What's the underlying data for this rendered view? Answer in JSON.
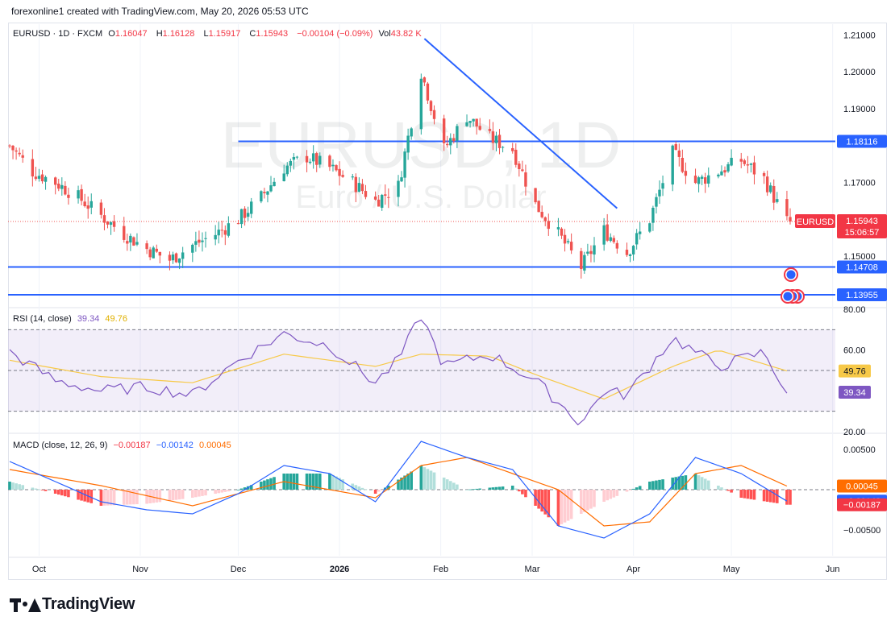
{
  "attribution": "forexonline1 created with TradingView.com, May 20, 2026 05:53 UTC",
  "brand": "TradingView",
  "watermark": {
    "symbol": "EURUSD, 1D",
    "description": "Euro / U.S. Dollar"
  },
  "legend": {
    "symbol": "EURUSD · 1D · FXCM",
    "open_label": "O",
    "open": "1.16047",
    "high_label": "H",
    "high": "1.16128",
    "low_label": "L",
    "low": "1.15917",
    "close_label": "C",
    "close": "1.15943",
    "change": "−0.00104 (−0.09%)",
    "vol_label": "Vol",
    "vol": "43.82 K"
  },
  "rsi_legend": {
    "label": "RSI (14, close)",
    "rsi": "39.34",
    "ma": "49.76"
  },
  "macd_legend": {
    "label": "MACD (close, 12, 26, 9)",
    "hist": "−0.00187",
    "macd": "−0.00142",
    "signal": "0.00045"
  },
  "colors": {
    "up": "#26a69a",
    "down": "#ef5350",
    "line": "#2962ff",
    "rsi": "#7e57c2",
    "rsi_ma": "#f7c948",
    "macd": "#2962ff",
    "signal": "#ff6d00"
  },
  "chart_data": [
    {
      "type": "candlestick",
      "title": "EURUSD · 1D · FXCM",
      "ylim": [
        1.1365,
        1.2125
      ],
      "y_ticks": [
        "1.21000",
        "1.20000",
        "1.19000",
        "1.17000",
        "1.15000"
      ],
      "x_ticks": [
        "Oct",
        "Nov",
        "Dec",
        "2026",
        "Feb",
        "Mar",
        "Apr",
        "May",
        "Jun"
      ],
      "last_price": {
        "label": "EURUSD",
        "value": "1.15943",
        "countdown": "15:06:57"
      },
      "levels": [
        {
          "value": 1.18116,
          "label": "1.18116"
        },
        {
          "value": 1.14708,
          "label": "1.14708"
        },
        {
          "value": 1.13955,
          "label": "1.13955"
        }
      ],
      "trendline": {
        "from": {
          "date": "2026-01-27",
          "price": 1.209
        },
        "to": {
          "date": "2026-03-27",
          "price": 1.163
        }
      },
      "close_path": [
        [
          "2025-09-22",
          1.18
        ],
        [
          "2025-09-29",
          1.173
        ],
        [
          "2025-10-06",
          1.17
        ],
        [
          "2025-10-13",
          1.166
        ],
        [
          "2025-10-20",
          1.161
        ],
        [
          "2025-10-27",
          1.156
        ],
        [
          "2025-11-03",
          1.152
        ],
        [
          "2025-11-10",
          1.149
        ],
        [
          "2025-11-17",
          1.153
        ],
        [
          "2025-11-24",
          1.156
        ],
        [
          "2025-12-01",
          1.16
        ],
        [
          "2025-12-08",
          1.166
        ],
        [
          "2025-12-15",
          1.174
        ],
        [
          "2025-12-22",
          1.177
        ],
        [
          "2025-12-29",
          1.174
        ],
        [
          "2026-01-05",
          1.17
        ],
        [
          "2026-01-12",
          1.165
        ],
        [
          "2026-01-19",
          1.169
        ],
        [
          "2026-01-26",
          1.2
        ],
        [
          "2026-02-02",
          1.179
        ],
        [
          "2026-02-09",
          1.188
        ],
        [
          "2026-02-16",
          1.182
        ],
        [
          "2026-02-23",
          1.179
        ],
        [
          "2026-03-02",
          1.164
        ],
        [
          "2026-03-09",
          1.156
        ],
        [
          "2026-03-16",
          1.147
        ],
        [
          "2026-03-23",
          1.157
        ],
        [
          "2026-03-30",
          1.151
        ],
        [
          "2026-04-06",
          1.16
        ],
        [
          "2026-04-13",
          1.178
        ],
        [
          "2026-04-20",
          1.17
        ],
        [
          "2026-04-27",
          1.173
        ],
        [
          "2026-05-04",
          1.176
        ],
        [
          "2026-05-11",
          1.171
        ],
        [
          "2026-05-18",
          1.1594
        ]
      ]
    },
    {
      "type": "line",
      "title": "RSI (14, close)",
      "ylim": [
        20,
        80
      ],
      "y_ticks": [
        "80.00",
        "60.00",
        "20.00"
      ],
      "bands": [
        70,
        50,
        30
      ],
      "current": {
        "rsi": "39.34",
        "ma": "49.76"
      },
      "rsi_path": [
        [
          "2025-09-22",
          59
        ],
        [
          "2025-10-06",
          45
        ],
        [
          "2025-10-20",
          40
        ],
        [
          "2025-11-03",
          42
        ],
        [
          "2025-11-17",
          38
        ],
        [
          "2025-12-01",
          55
        ],
        [
          "2025-12-15",
          68
        ],
        [
          "2025-12-29",
          62
        ],
        [
          "2026-01-12",
          44
        ],
        [
          "2026-01-19",
          55
        ],
        [
          "2026-01-26",
          77
        ],
        [
          "2026-02-02",
          52
        ],
        [
          "2026-02-16",
          58
        ],
        [
          "2026-03-02",
          45
        ],
        [
          "2026-03-16",
          24
        ],
        [
          "2026-03-23",
          40
        ],
        [
          "2026-03-30",
          38
        ],
        [
          "2026-04-13",
          66
        ],
        [
          "2026-04-27",
          52
        ],
        [
          "2026-05-11",
          59
        ],
        [
          "2026-05-18",
          39.34
        ]
      ],
      "ma_path": [
        [
          "2025-09-22",
          55
        ],
        [
          "2025-10-20",
          47
        ],
        [
          "2025-11-17",
          44
        ],
        [
          "2025-12-15",
          58
        ],
        [
          "2026-01-12",
          52
        ],
        [
          "2026-01-26",
          58
        ],
        [
          "2026-02-16",
          57
        ],
        [
          "2026-03-02",
          48
        ],
        [
          "2026-03-23",
          36
        ],
        [
          "2026-04-13",
          52
        ],
        [
          "2026-04-27",
          60
        ],
        [
          "2026-05-18",
          49.76
        ]
      ]
    },
    {
      "type": "histogram",
      "title": "MACD (close, 12, 26, 9)",
      "ylim": [
        -0.0082,
        0.0068
      ],
      "y_ticks": [
        "0.00500",
        "−0.00500"
      ],
      "current": {
        "hist": "−0.00187",
        "macd": "−0.00142",
        "signal": "0.00045"
      },
      "macd_path": [
        [
          "2025-09-22",
          0.0035
        ],
        [
          "2025-10-06",
          0.001
        ],
        [
          "2025-10-20",
          -0.0015
        ],
        [
          "2025-11-03",
          -0.0025
        ],
        [
          "2025-11-17",
          -0.003
        ],
        [
          "2025-12-01",
          -0.0005
        ],
        [
          "2025-12-15",
          0.003
        ],
        [
          "2025-12-29",
          0.002
        ],
        [
          "2026-01-12",
          -0.0015
        ],
        [
          "2026-01-26",
          0.006
        ],
        [
          "2026-02-09",
          0.004
        ],
        [
          "2026-02-23",
          0.0025
        ],
        [
          "2026-03-09",
          -0.0045
        ],
        [
          "2026-03-23",
          -0.006
        ],
        [
          "2026-04-06",
          -0.003
        ],
        [
          "2026-04-20",
          0.004
        ],
        [
          "2026-05-04",
          0.002
        ],
        [
          "2026-05-18",
          -0.00142
        ]
      ],
      "signal_path": [
        [
          "2025-09-22",
          0.0025
        ],
        [
          "2025-10-20",
          0.0005
        ],
        [
          "2025-11-17",
          -0.002
        ],
        [
          "2025-12-15",
          0.001
        ],
        [
          "2026-01-12",
          -0.001
        ],
        [
          "2026-01-26",
          0.003
        ],
        [
          "2026-02-09",
          0.004
        ],
        [
          "2026-03-09",
          0.0
        ],
        [
          "2026-03-23",
          -0.0045
        ],
        [
          "2026-04-06",
          -0.004
        ],
        [
          "2026-04-20",
          0.002
        ],
        [
          "2026-05-04",
          0.003
        ],
        [
          "2026-05-18",
          0.00045
        ]
      ]
    }
  ]
}
